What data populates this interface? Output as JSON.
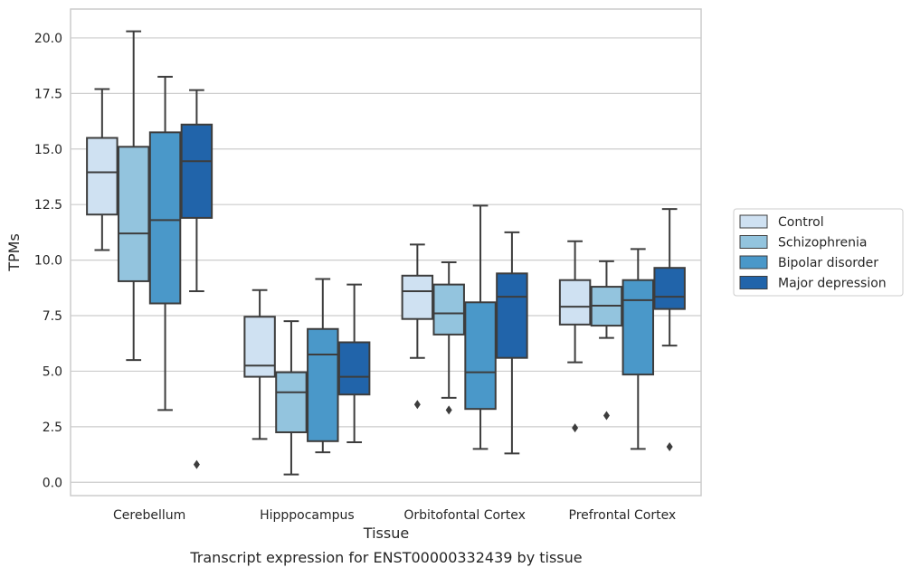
{
  "chart_data": {
    "type": "box",
    "title": "",
    "caption": "Transcript expression for ENST00000332439 by tissue",
    "xlabel": "Tissue",
    "ylabel": "TPMs",
    "ylim": [
      -0.6,
      21.3
    ],
    "yticks": [
      0.0,
      2.5,
      5.0,
      7.5,
      10.0,
      12.5,
      15.0,
      17.5,
      20.0
    ],
    "ytick_labels": [
      "0.0",
      "2.5",
      "5.0",
      "7.5",
      "10.0",
      "12.5",
      "15.0",
      "17.5",
      "20.0"
    ],
    "grid": "horizontal",
    "legend_position": "right",
    "categories": [
      "Cerebellum",
      "Hipppocampus",
      "Orbitofontal Cortex",
      "Prefrontal Cortex"
    ],
    "series": [
      {
        "name": "Control",
        "color": "#cfe1f2",
        "boxes": [
          {
            "whisker_low": 10.45,
            "q1": 12.05,
            "median": 13.95,
            "q3": 15.5,
            "whisker_high": 17.7,
            "outliers": []
          },
          {
            "whisker_low": 1.95,
            "q1": 4.75,
            "median": 5.25,
            "q3": 7.45,
            "whisker_high": 8.65,
            "outliers": []
          },
          {
            "whisker_low": 5.6,
            "q1": 7.35,
            "median": 8.6,
            "q3": 9.3,
            "whisker_high": 10.7,
            "outliers": [
              3.5
            ]
          },
          {
            "whisker_low": 5.4,
            "q1": 7.1,
            "median": 7.9,
            "q3": 9.1,
            "whisker_high": 10.85,
            "outliers": [
              2.45
            ]
          }
        ]
      },
      {
        "name": "Schizophrenia",
        "color": "#93c4de",
        "boxes": [
          {
            "whisker_low": 5.5,
            "q1": 9.05,
            "median": 11.2,
            "q3": 15.1,
            "whisker_high": 20.3,
            "outliers": []
          },
          {
            "whisker_low": 0.35,
            "q1": 2.25,
            "median": 4.05,
            "q3": 4.95,
            "whisker_high": 7.25,
            "outliers": []
          },
          {
            "whisker_low": 3.8,
            "q1": 6.65,
            "median": 7.6,
            "q3": 8.9,
            "whisker_high": 9.9,
            "outliers": [
              3.25
            ]
          },
          {
            "whisker_low": 6.5,
            "q1": 7.05,
            "median": 7.95,
            "q3": 8.8,
            "whisker_high": 9.95,
            "outliers": [
              3.0
            ]
          }
        ]
      },
      {
        "name": "Bipolar disorder",
        "color": "#4a98c9",
        "boxes": [
          {
            "whisker_low": 3.25,
            "q1": 8.05,
            "median": 11.8,
            "q3": 15.75,
            "whisker_high": 18.25,
            "outliers": []
          },
          {
            "whisker_low": 1.35,
            "q1": 1.85,
            "median": 5.75,
            "q3": 6.9,
            "whisker_high": 9.15,
            "outliers": []
          },
          {
            "whisker_low": 1.5,
            "q1": 3.3,
            "median": 4.95,
            "q3": 8.1,
            "whisker_high": 12.45,
            "outliers": []
          },
          {
            "whisker_low": 1.5,
            "q1": 4.85,
            "median": 8.2,
            "q3": 9.1,
            "whisker_high": 10.5,
            "outliers": []
          }
        ]
      },
      {
        "name": "Major depression",
        "color": "#2164aa",
        "boxes": [
          {
            "whisker_low": 8.6,
            "q1": 11.9,
            "median": 14.45,
            "q3": 16.1,
            "whisker_high": 17.65,
            "outliers": [
              0.8
            ]
          },
          {
            "whisker_low": 1.8,
            "q1": 3.95,
            "median": 4.75,
            "q3": 6.3,
            "whisker_high": 8.9,
            "outliers": []
          },
          {
            "whisker_low": 1.3,
            "q1": 5.6,
            "median": 8.35,
            "q3": 9.4,
            "whisker_high": 11.25,
            "outliers": []
          },
          {
            "whisker_low": 6.15,
            "q1": 7.8,
            "median": 8.35,
            "q3": 9.65,
            "whisker_high": 12.3,
            "outliers": [
              1.6
            ]
          }
        ]
      }
    ]
  }
}
